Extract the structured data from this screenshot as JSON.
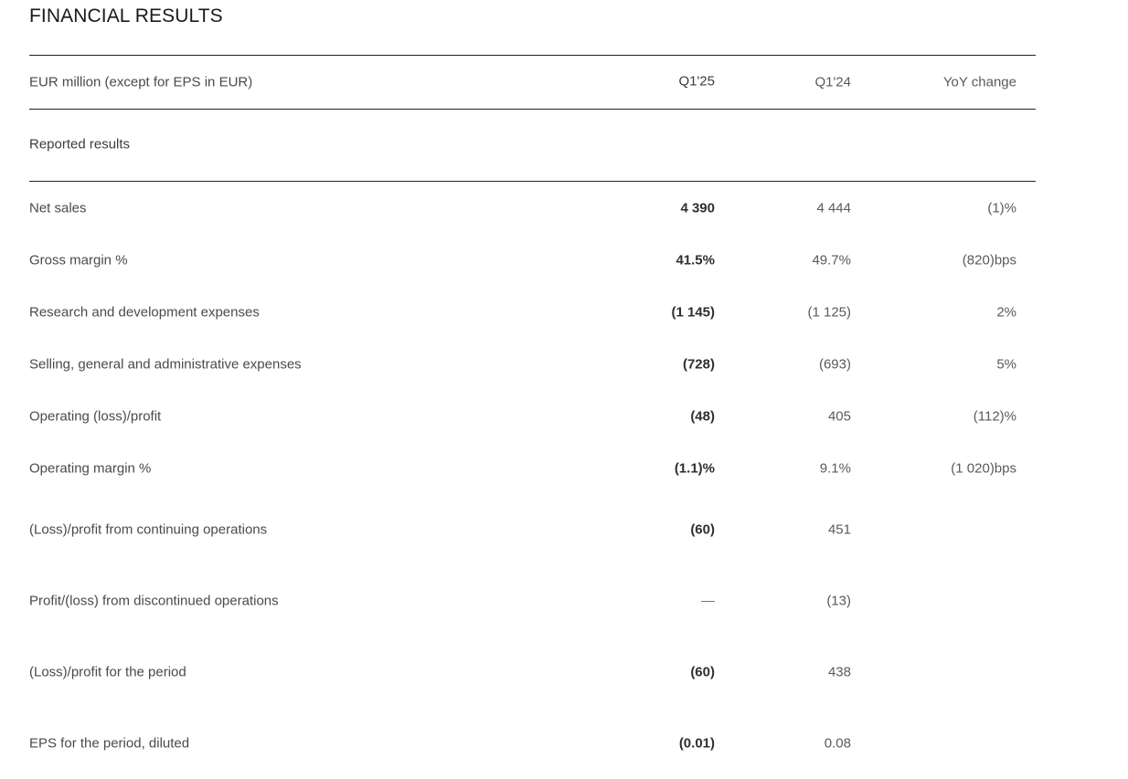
{
  "page": {
    "title": "FINANCIAL RESULTS"
  },
  "table": {
    "columns": {
      "label": "EUR million (except for EPS in EUR)",
      "q125": "Q1'25",
      "q124": "Q1'24",
      "yoy": "YoY change"
    },
    "section": "Reported results",
    "rows": [
      {
        "label": "Net sales",
        "q125": "4 390",
        "q124": "4 444",
        "yoy": "(1)%"
      },
      {
        "label": "Gross margin %",
        "q125": "41.5%",
        "q124": "49.7%",
        "yoy": "(820)bps"
      },
      {
        "label": "Research and development expenses",
        "q125": "(1 145)",
        "q124": "(1 125)",
        "yoy": "2%"
      },
      {
        "label": "Selling, general and administrative expenses",
        "q125": "(728)",
        "q124": "(693)",
        "yoy": "5%"
      },
      {
        "label": "Operating (loss)/profit",
        "q125": "(48)",
        "q124": "405",
        "yoy": "(112)%"
      },
      {
        "label": "Operating margin %",
        "q125": "(1.1)%",
        "q124": "9.1%",
        "yoy": "(1 020)bps"
      },
      {
        "label": "(Loss)/profit from continuing operations",
        "q125": "(60)",
        "q124": "451",
        "yoy": ""
      },
      {
        "label": "Profit/(loss) from discontinued operations",
        "q125": "—",
        "q124": "(13)",
        "yoy": ""
      },
      {
        "label": "(Loss)/profit for the period",
        "q125": "(60)",
        "q124": "438",
        "yoy": ""
      },
      {
        "label": "EPS for the period, diluted",
        "q125": "(0.01)",
        "q124": "0.08",
        "yoy": ""
      }
    ]
  }
}
